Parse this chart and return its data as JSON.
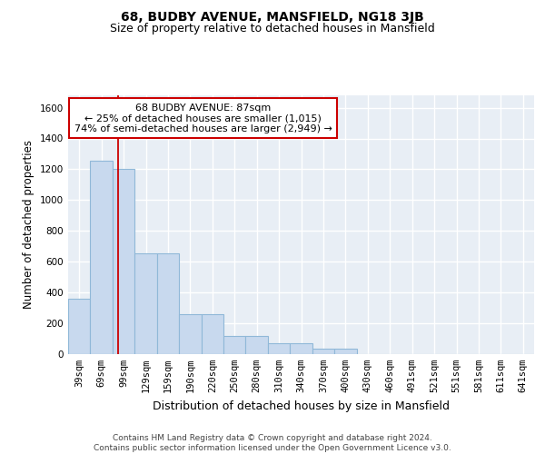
{
  "title1": "68, BUDBY AVENUE, MANSFIELD, NG18 3JB",
  "title2": "Size of property relative to detached houses in Mansfield",
  "xlabel": "Distribution of detached houses by size in Mansfield",
  "ylabel": "Number of detached properties",
  "bar_labels": [
    "39sqm",
    "69sqm",
    "99sqm",
    "129sqm",
    "159sqm",
    "190sqm",
    "220sqm",
    "250sqm",
    "280sqm",
    "310sqm",
    "340sqm",
    "370sqm",
    "400sqm",
    "430sqm",
    "460sqm",
    "491sqm",
    "521sqm",
    "551sqm",
    "581sqm",
    "611sqm",
    "641sqm"
  ],
  "bar_heights": [
    360,
    1255,
    1205,
    655,
    655,
    260,
    260,
    120,
    120,
    70,
    70,
    35,
    35,
    0,
    0,
    0,
    0,
    0,
    0,
    0,
    0
  ],
  "bar_color": "#c8d9ee",
  "bar_edge_color": "#90b8d8",
  "bar_linewidth": 0.8,
  "background_color": "#e8eef5",
  "grid_color": "#ffffff",
  "vline_color": "#cc0000",
  "vline_x_index": 1.75,
  "annotation_text": "68 BUDBY AVENUE: 87sqm\n← 25% of detached houses are smaller (1,015)\n74% of semi-detached houses are larger (2,949) →",
  "annotation_box_color": "#ffffff",
  "annotation_box_edge_color": "#cc0000",
  "ylim": [
    0,
    1680
  ],
  "yticks": [
    0,
    200,
    400,
    600,
    800,
    1000,
    1200,
    1400,
    1600
  ],
  "footer_text": "Contains HM Land Registry data © Crown copyright and database right 2024.\nContains public sector information licensed under the Open Government Licence v3.0.",
  "fig_background": "#ffffff",
  "title1_fontsize": 10,
  "title2_fontsize": 9,
  "xlabel_fontsize": 9,
  "ylabel_fontsize": 8.5,
  "tick_fontsize": 7.5,
  "annotation_fontsize": 8,
  "footer_fontsize": 6.5
}
